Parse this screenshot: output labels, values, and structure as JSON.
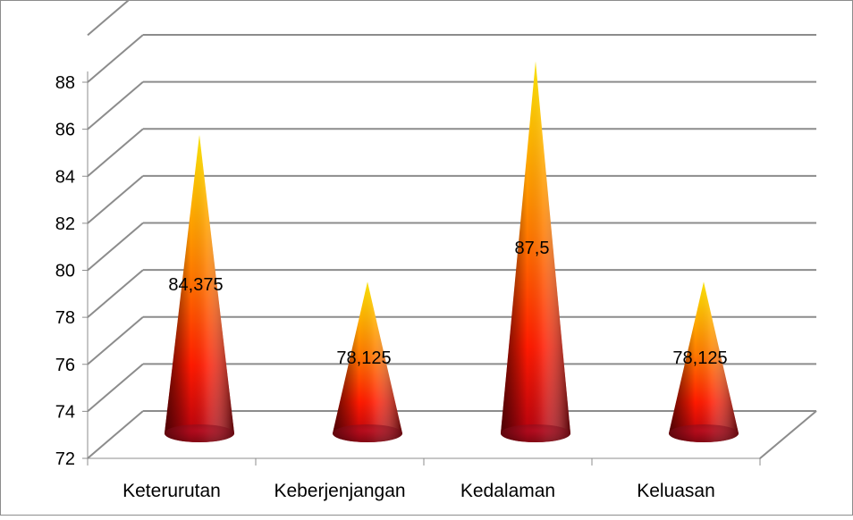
{
  "chart_data": {
    "type": "bar",
    "bar_shape": "3d-cone",
    "categories": [
      "Keterurutan",
      "Keberjenjangan",
      "Kedalaman",
      "Keluasan"
    ],
    "values": [
      84.375,
      78.125,
      87.5,
      78.125
    ],
    "data_labels": [
      "84,375",
      "78,125",
      "87,5",
      "78,125"
    ],
    "ylim": [
      72,
      88
    ],
    "y_ticks": [
      "72",
      "74",
      "76",
      "78",
      "80",
      "82",
      "84",
      "86",
      "88"
    ],
    "grid": true,
    "legend": "none",
    "title": "",
    "xlabel": "",
    "ylabel": "",
    "colors": {
      "cone_top": "#FFE600",
      "cone_mid": "#FF1A00",
      "cone_base": "#5A0A10",
      "grid": "#8C8C8C",
      "frame": "#8C8C8C"
    }
  }
}
